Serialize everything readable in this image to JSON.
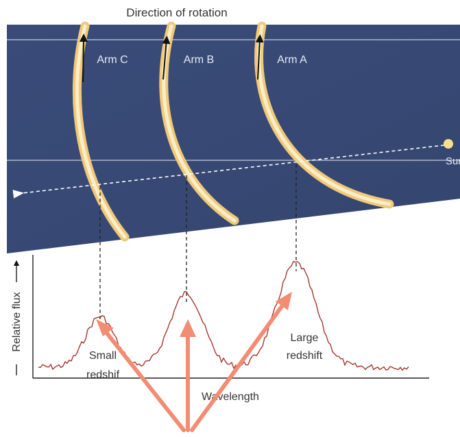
{
  "header": {
    "direction_label": "Direction of rotation"
  },
  "galaxy": {
    "arms": [
      {
        "label": "Arm C"
      },
      {
        "label": "Arm B"
      },
      {
        "label": "Arm A"
      }
    ],
    "sun_label": "Sun"
  },
  "spectrum": {
    "y_axis_label": "Relative flux",
    "x_axis_label": "Wavelength",
    "annotations": {
      "small_redshift": [
        "Small",
        "redshif"
      ],
      "large_redshift": [
        "Large",
        "redshift"
      ]
    }
  },
  "colors": {
    "panel": "#3c4e7d",
    "arm_glow": "#f2cf86",
    "arm_core": "#fbf0c8",
    "sun": "#f7e089",
    "spectrum_line": "#a4372c",
    "pointer_arrows": "#f28c72"
  }
}
